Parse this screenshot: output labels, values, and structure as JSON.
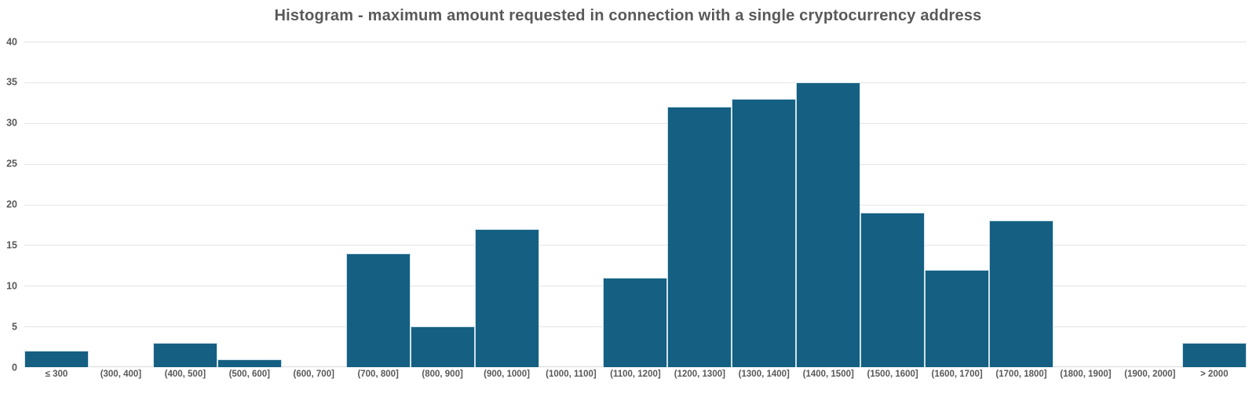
{
  "chart_data": {
    "type": "bar",
    "subtype": "histogram",
    "title": "Histogram - maximum amount requested in connection with a single cryptocurrency address",
    "categories": [
      "≤ 300",
      "(300, 400]",
      "(400, 500]",
      "(500, 600]",
      "(600, 700]",
      "(700, 800]",
      "(800, 900]",
      "(900, 1000]",
      "(1000, 1100]",
      "(1100, 1200]",
      "(1200, 1300]",
      "(1300, 1400]",
      "(1400, 1500]",
      "(1500, 1600]",
      "(1600, 1700]",
      "(1700, 1800]",
      "(1800, 1900]",
      "(1900, 2000]",
      "> 2000"
    ],
    "values": [
      2,
      0,
      3,
      1,
      0,
      14,
      5,
      17,
      0,
      11,
      32,
      33,
      35,
      19,
      12,
      18,
      0,
      0,
      3
    ],
    "xlabel": "",
    "ylabel": "",
    "ylim": [
      0,
      40
    ],
    "yticks": [
      0,
      5,
      10,
      15,
      20,
      25,
      30,
      35,
      40
    ],
    "grid": "horizontal",
    "legend": "none",
    "gap_width_percent": 0
  },
  "colors": {
    "bar_fill": "#156082",
    "bar_outline": "#cfe2ec",
    "gridline": "#e4e4e4",
    "axis_line": "#d9d9d9",
    "label_text": "#595959",
    "title_text": "#595959",
    "background": "#ffffff"
  }
}
